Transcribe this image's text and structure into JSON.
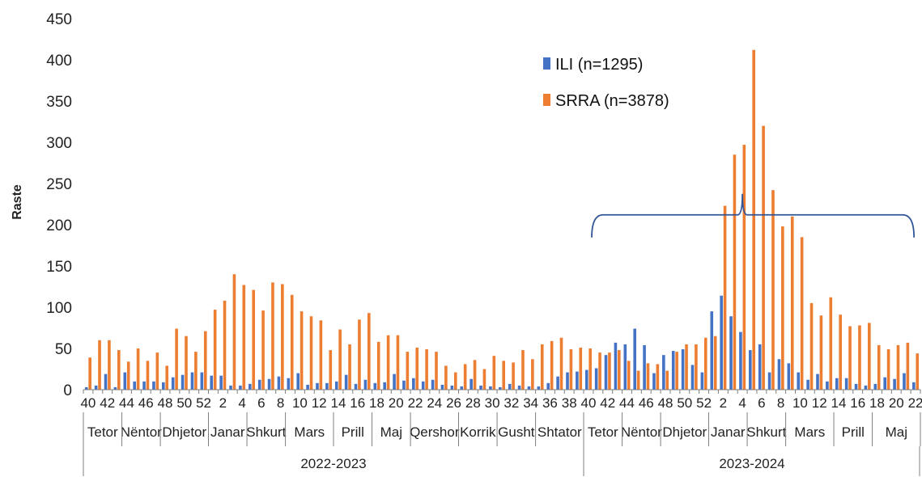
{
  "chart_data": {
    "type": "bar",
    "ylabel": "Raste",
    "xlabel": "",
    "title": "",
    "ylim": [
      0,
      450
    ],
    "yticks": [
      0,
      50,
      100,
      150,
      200,
      250,
      300,
      350,
      400,
      450
    ],
    "grid": false,
    "legend_position": "top-right",
    "colors": {
      "ILI": "#4472C4",
      "SRRA": "#ED7D31",
      "bracket": "#2F5597",
      "axis": "#7f7f7f"
    },
    "week_labels": [
      "40",
      "41",
      "42",
      "43",
      "44",
      "45",
      "46",
      "47",
      "48",
      "49",
      "50",
      "51",
      "52",
      "1",
      "2",
      "3",
      "4",
      "5",
      "6",
      "7",
      "8",
      "9",
      "10",
      "11",
      "12",
      "13",
      "14",
      "15",
      "16",
      "17",
      "18",
      "19",
      "20",
      "21",
      "22",
      "23",
      "24",
      "25",
      "26",
      "27",
      "28",
      "29",
      "30",
      "31",
      "32",
      "33",
      "34",
      "35",
      "36",
      "37",
      "38",
      "39",
      "40",
      "41",
      "42",
      "43",
      "44",
      "45",
      "46",
      "47",
      "48",
      "49",
      "50",
      "51",
      "52",
      "1",
      "2",
      "3",
      "4",
      "5",
      "6",
      "7",
      "8",
      "9",
      "10",
      "11",
      "12",
      "13",
      "14",
      "15",
      "16",
      "17",
      "18",
      "19",
      "20",
      "21",
      "22"
    ],
    "shown_week_labels": [
      "40",
      "42",
      "44",
      "46",
      "48",
      "50",
      "52",
      "2",
      "4",
      "6",
      "8",
      "10",
      "12",
      "14",
      "16",
      "18",
      "20",
      "22",
      "24",
      "26",
      "28",
      "30",
      "32",
      "34",
      "36",
      "38",
      "40",
      "42",
      "44",
      "46",
      "48",
      "50",
      "52",
      "2",
      "4",
      "6",
      "8",
      "10",
      "12",
      "14",
      "16",
      "18",
      "20",
      "22"
    ],
    "months": [
      {
        "label": "Tetor",
        "start": 0,
        "end": 4
      },
      {
        "label": "Nëntor",
        "start": 4,
        "end": 8
      },
      {
        "label": "Dhjetor",
        "start": 8,
        "end": 13
      },
      {
        "label": "Janar",
        "start": 13,
        "end": 17
      },
      {
        "label": "Shkurt",
        "start": 17,
        "end": 21
      },
      {
        "label": "Mars",
        "start": 21,
        "end": 26
      },
      {
        "label": "Prill",
        "start": 26,
        "end": 30
      },
      {
        "label": "Maj",
        "start": 30,
        "end": 34
      },
      {
        "label": "Qershor",
        "start": 34,
        "end": 39
      },
      {
        "label": "Korrik",
        "start": 39,
        "end": 43
      },
      {
        "label": "Gusht",
        "start": 43,
        "end": 47
      },
      {
        "label": "Shtator",
        "start": 47,
        "end": 52
      },
      {
        "label": "Tetor",
        "start": 52,
        "end": 56
      },
      {
        "label": "Nëntor",
        "start": 56,
        "end": 60
      },
      {
        "label": "Dhjetor",
        "start": 60,
        "end": 65
      },
      {
        "label": "Janar",
        "start": 65,
        "end": 69
      },
      {
        "label": "Shkurt",
        "start": 69,
        "end": 73
      },
      {
        "label": "Mars",
        "start": 73,
        "end": 78
      },
      {
        "label": "Prill",
        "start": 78,
        "end": 82
      },
      {
        "label": "Maj",
        "start": 82,
        "end": 87
      }
    ],
    "seasons": [
      {
        "label": "2022-2023",
        "start": 0,
        "end": 52
      },
      {
        "label": "2023-2024",
        "start": 52,
        "end": 87
      }
    ],
    "bracket": {
      "start_index": 52,
      "end_index": 86,
      "value": 212
    },
    "series": [
      {
        "name": "ILI (n=1295)",
        "values": [
          3,
          5,
          19,
          3,
          21,
          10,
          10,
          10,
          9,
          15,
          18,
          21,
          21,
          17,
          17,
          5,
          5,
          7,
          12,
          13,
          16,
          14,
          20,
          6,
          8,
          8,
          10,
          18,
          7,
          12,
          8,
          9,
          19,
          11,
          14,
          10,
          12,
          6,
          5,
          4,
          13,
          5,
          4,
          3,
          7,
          5,
          4,
          4,
          8,
          16,
          21,
          22,
          24,
          26,
          42,
          57,
          55,
          74,
          54,
          20,
          42,
          47,
          49,
          30,
          21,
          95,
          114,
          89,
          70,
          48,
          55,
          21,
          37,
          32,
          21,
          12,
          19,
          10,
          14,
          14,
          7,
          5,
          7,
          15,
          13,
          20,
          9
        ]
      },
      {
        "name": "SRRA (n=3878)",
        "values": [
          39,
          60,
          60,
          48,
          34,
          50,
          35,
          45,
          29,
          74,
          65,
          46,
          71,
          97,
          108,
          140,
          127,
          121,
          96,
          130,
          128,
          115,
          95,
          89,
          84,
          48,
          73,
          55,
          85,
          93,
          58,
          66,
          66,
          46,
          51,
          49,
          46,
          29,
          21,
          31,
          36,
          25,
          41,
          35,
          33,
          48,
          37,
          55,
          59,
          63,
          49,
          51,
          50,
          45,
          45,
          48,
          35,
          23,
          32,
          31,
          23,
          46,
          55,
          55,
          63,
          65,
          223,
          285,
          297,
          412,
          320,
          242,
          198,
          210,
          185,
          105,
          90,
          112,
          91,
          77,
          78,
          81,
          54,
          49,
          54,
          57,
          44
        ]
      }
    ]
  }
}
